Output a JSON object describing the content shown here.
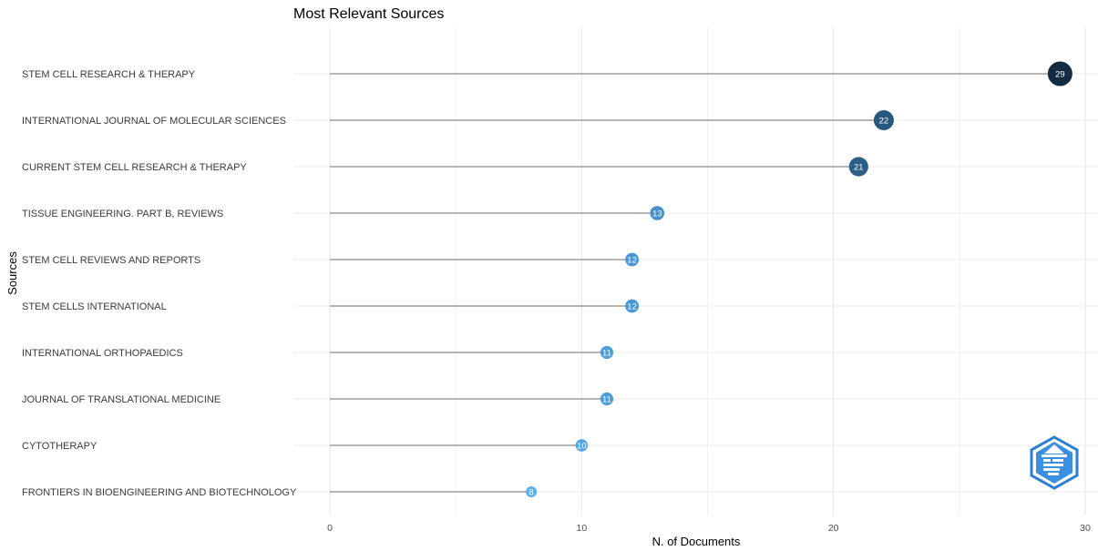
{
  "chart_data": {
    "type": "lollipop",
    "title": "Most Relevant Sources",
    "xlabel": "N. of Documents",
    "ylabel": "Sources",
    "xlim": [
      0,
      30
    ],
    "x_ticks": [
      0,
      10,
      20,
      30
    ],
    "grid": true,
    "categories": [
      "STEM CELL RESEARCH & THERAPY",
      "INTERNATIONAL JOURNAL OF MOLECULAR SCIENCES",
      "CURRENT STEM CELL RESEARCH & THERAPY",
      "TISSUE ENGINEERING. PART B, REVIEWS",
      "STEM CELL REVIEWS AND REPORTS",
      "STEM CELLS INTERNATIONAL",
      "INTERNATIONAL ORTHOPAEDICS",
      "JOURNAL OF TRANSLATIONAL MEDICINE",
      "CYTOTHERAPY",
      "FRONTIERS IN BIOENGINEERING AND BIOTECHNOLOGY"
    ],
    "values": [
      29,
      22,
      21,
      13,
      12,
      12,
      11,
      11,
      10,
      8
    ],
    "color_scale": {
      "low": "#56B1F7",
      "high": "#132B43"
    },
    "segment_color": "#8a8a8a"
  },
  "logo": {
    "icon": "bibliometrix-logo-icon",
    "color": "#1e88e5"
  }
}
